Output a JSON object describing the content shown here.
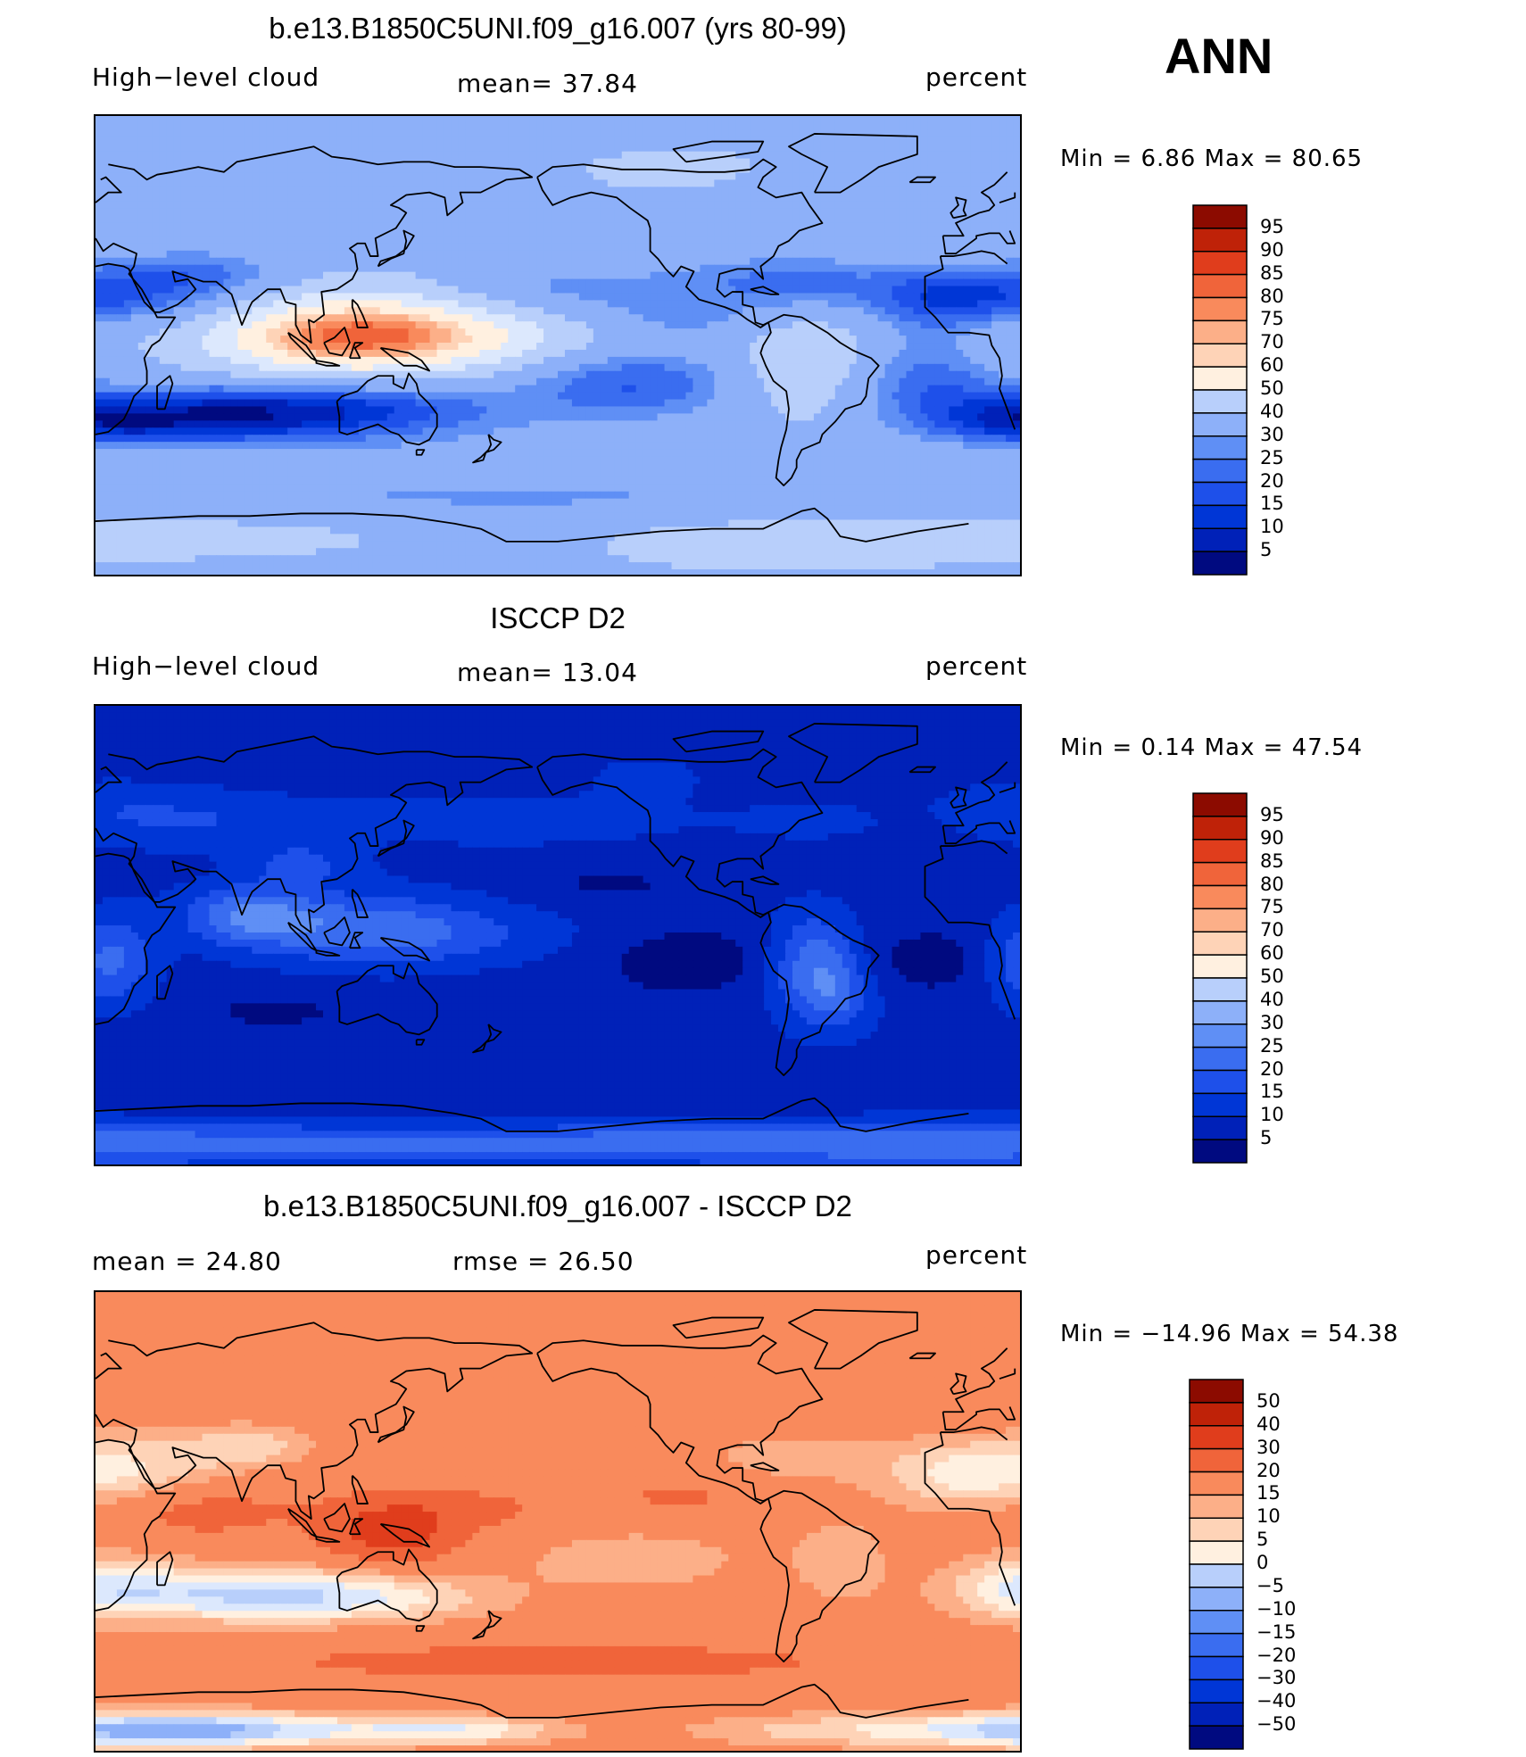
{
  "season": "ANN",
  "colors": {
    "bluered": [
      "#000a80",
      "#0021b8",
      "#0036d6",
      "#1e50ea",
      "#3a6df0",
      "#5f8ff5",
      "#8db0f9",
      "#b8cffb",
      "#dce8fd",
      "#fff0e0",
      "#fed3b7",
      "#fcaf88",
      "#f98a5c",
      "#f0643a",
      "#e03d1c",
      "#bf2208",
      "#8c0b00"
    ],
    "diff": [
      "#000a80",
      "#0021b8",
      "#0036d6",
      "#1e50ea",
      "#3a6df0",
      "#5f8ff5",
      "#8db0f9",
      "#b8cffb",
      "#dce8fd",
      "#fff0e0",
      "#fed3b7",
      "#fcaf88",
      "#f98a5c",
      "#f0643a",
      "#e03d1c",
      "#bf2208",
      "#8c0b00"
    ]
  },
  "panels": [
    {
      "title": "b.e13.B1850C5UNI.f09_g16.007 (yrs 80-99)",
      "left_label": "High−level cloud",
      "center_label": "mean=   37.84",
      "right_label": "percent",
      "minmax": "Min =    6.86 Max =   80.65",
      "colorbar_labels": [
        "95",
        "90",
        "85",
        "80",
        "75",
        "70",
        "60",
        "50",
        "40",
        "30",
        "25",
        "20",
        "15",
        "10",
        "5"
      ],
      "field": "model"
    },
    {
      "title": "ISCCP D2",
      "left_label": "High−level cloud",
      "center_label": "mean=   13.04",
      "right_label": "percent",
      "minmax": "Min =    0.14 Max =   47.54",
      "colorbar_labels": [
        "95",
        "90",
        "85",
        "80",
        "75",
        "70",
        "60",
        "50",
        "40",
        "30",
        "25",
        "20",
        "15",
        "10",
        "5"
      ],
      "field": "obs"
    },
    {
      "title": "b.e13.B1850C5UNI.f09_g16.007 - ISCCP D2",
      "left_label": "mean =   24.80",
      "center_label": "rmse =   26.50",
      "right_label": "percent",
      "minmax": "Min = −14.96 Max =   54.38",
      "colorbar_labels": [
        "50",
        "40",
        "30",
        "20",
        "15",
        "10",
        "5",
        "0",
        "−5",
        "−10",
        "−15",
        "−20",
        "−30",
        "−40",
        "−50"
      ],
      "field": "diff"
    }
  ]
}
